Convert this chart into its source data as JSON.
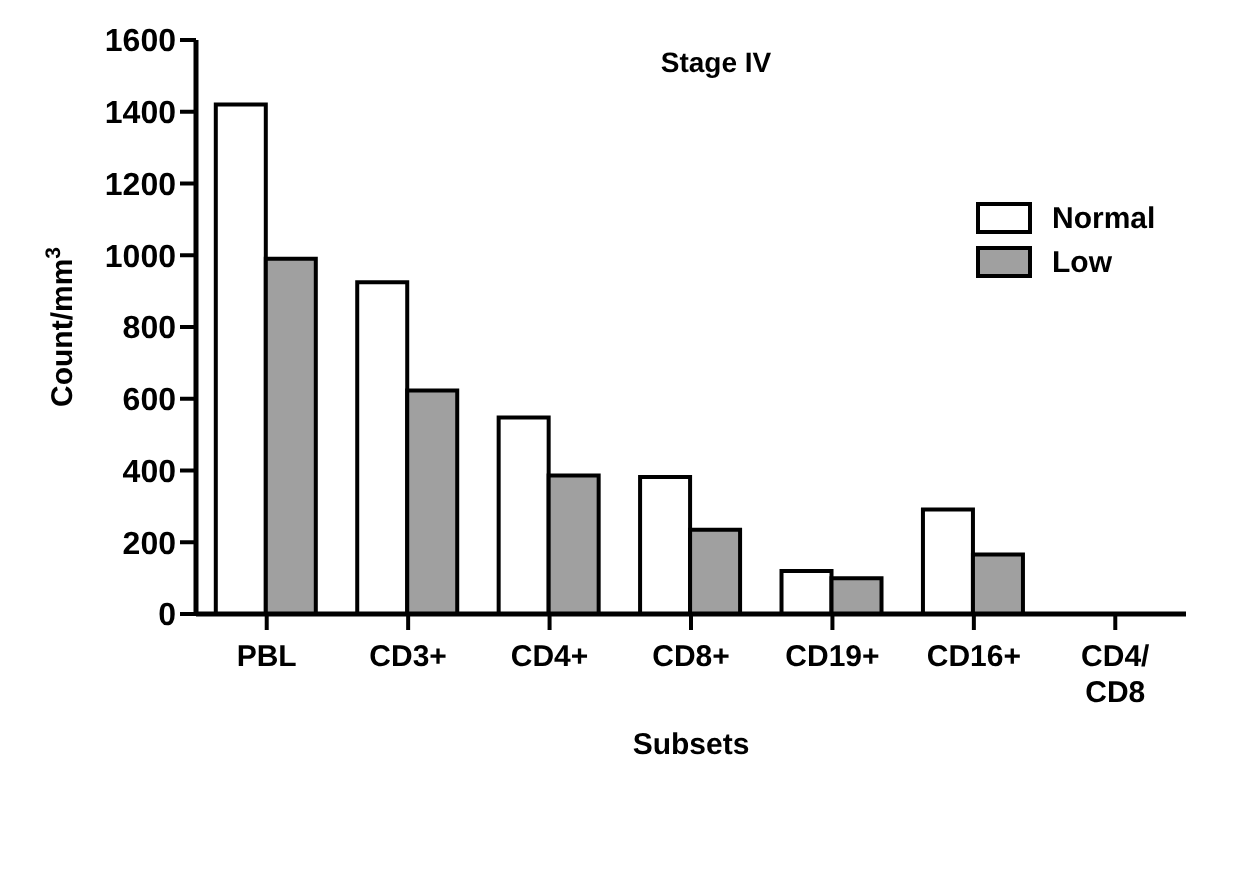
{
  "chart_data": {
    "type": "bar",
    "title": "Stage IV",
    "xlabel": "Subsets",
    "ylabel": "Count/mm$^{3}$",
    "categories": [
      "PBL",
      "CD3+",
      "CD4+",
      "CD8+",
      "CD19+",
      "CD16+",
      "CD4/\nCD8"
    ],
    "series": [
      {
        "name": "Normal",
        "color": "#ffffff",
        "values": [
          1420,
          925,
          548,
          382,
          120,
          291,
          null
        ]
      },
      {
        "name": "Low",
        "color": "#a0a0a0",
        "values": [
          990,
          623,
          386,
          235,
          100,
          166,
          null
        ]
      }
    ],
    "ylim": [
      0,
      1600
    ],
    "yticks": [
      0,
      200,
      400,
      600,
      800,
      1000,
      1200,
      1400,
      1600
    ],
    "grid": false,
    "legend": "top right"
  }
}
